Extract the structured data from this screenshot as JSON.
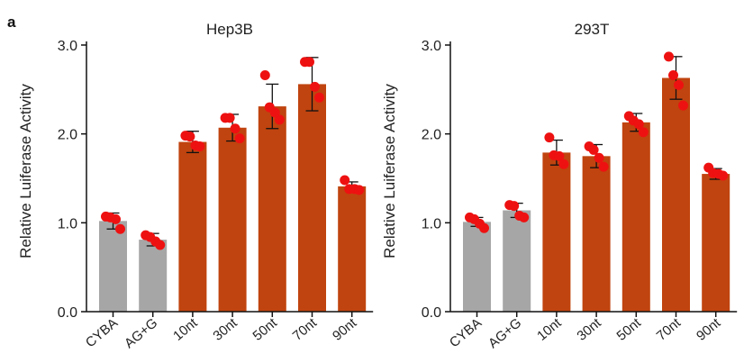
{
  "panel_label": "a",
  "chart_data": [
    {
      "type": "bar",
      "title": "Hep3B",
      "ylabel": "Relative Luiferase Activity",
      "xlabel": "",
      "ylim": [
        0,
        3.0
      ],
      "yticks": [
        "0.0",
        "1.0",
        "2.0",
        "3.0"
      ],
      "categories": [
        "CYBA",
        "AG+G",
        "10nt",
        "30nt",
        "50nt",
        "70nt",
        "90nt"
      ],
      "values": [
        1.02,
        0.81,
        1.91,
        2.07,
        2.31,
        2.56,
        1.41
      ],
      "errors": [
        0.09,
        0.07,
        0.12,
        0.15,
        0.25,
        0.3,
        0.05
      ],
      "points": [
        [
          1.07,
          1.06,
          1.04,
          0.93
        ],
        [
          0.86,
          0.84,
          0.79,
          0.75
        ],
        [
          1.98,
          1.97,
          1.87,
          1.86
        ],
        [
          2.18,
          2.18,
          2.06,
          1.95
        ],
        [
          2.66,
          2.3,
          2.24,
          2.16
        ],
        [
          2.81,
          2.81,
          2.53,
          2.41
        ],
        [
          1.48,
          1.38,
          1.38,
          1.37
        ]
      ],
      "bar_colors": [
        "#a6a6a6",
        "#a6a6a6",
        "#c0440f",
        "#c0440f",
        "#c0440f",
        "#c0440f",
        "#c0440f"
      ],
      "point_color": "#ee1111"
    },
    {
      "type": "bar",
      "title": "293T",
      "ylabel": "Relative Luiferase Activity",
      "xlabel": "",
      "ylim": [
        0,
        3.0
      ],
      "yticks": [
        "0.0",
        "1.0",
        "2.0",
        "3.0"
      ],
      "categories": [
        "CYBA",
        "AG+G",
        "10nt",
        "30nt",
        "50nt",
        "70nt",
        "90nt"
      ],
      "values": [
        1.01,
        1.14,
        1.79,
        1.75,
        2.13,
        2.63,
        1.55
      ],
      "errors": [
        0.05,
        0.08,
        0.14,
        0.13,
        0.1,
        0.24,
        0.06
      ],
      "points": [
        [
          1.06,
          1.04,
          0.99,
          0.94
        ],
        [
          1.2,
          1.19,
          1.08,
          1.06
        ],
        [
          1.96,
          1.76,
          1.75,
          1.66
        ],
        [
          1.86,
          1.82,
          1.73,
          1.63
        ],
        [
          2.2,
          2.15,
          2.11,
          2.02
        ],
        [
          2.87,
          2.66,
          2.55,
          2.32
        ],
        [
          1.62,
          1.56,
          1.55,
          1.53
        ]
      ],
      "bar_colors": [
        "#a6a6a6",
        "#a6a6a6",
        "#c0440f",
        "#c0440f",
        "#c0440f",
        "#c0440f",
        "#c0440f"
      ],
      "point_color": "#ee1111"
    }
  ]
}
